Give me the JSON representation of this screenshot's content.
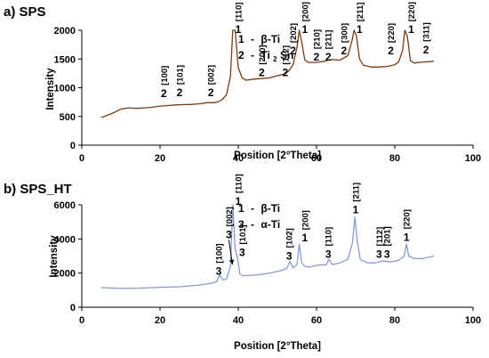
{
  "chart_data": [
    {
      "type": "line",
      "title": "a) SPS",
      "xlabel": "Position [2°Theta]",
      "ylabel": "Intensity",
      "xlim": [
        0,
        100
      ],
      "ylim": [
        0,
        2000
      ],
      "x_ticks": [
        0,
        20,
        40,
        60,
        80,
        100
      ],
      "y_ticks": [
        0,
        500,
        1000,
        1500,
        2000
      ],
      "grid": false,
      "line_color": "#7b3a10",
      "legend": {
        "placement": "top-left-inside",
        "entries": [
          {
            "number": "1",
            "dash": "-",
            "phase": "β-Ti"
          },
          {
            "number": "2",
            "dash": "-",
            "phase": "Ti",
            "subscript": "2",
            "suffix": "Sn"
          }
        ]
      },
      "series": [
        {
          "x": [
            5,
            8,
            10,
            12,
            14,
            16,
            18,
            20,
            22,
            24,
            26,
            28,
            30,
            32,
            34,
            35,
            36,
            37,
            38,
            38.6,
            39.2,
            40,
            41,
            42,
            44,
            46,
            48,
            50,
            52,
            53,
            54,
            55,
            55.6,
            56.2,
            57,
            58,
            60,
            62,
            63,
            64,
            66,
            67,
            68,
            69,
            69.6,
            70.2,
            71,
            72,
            74,
            76,
            78,
            80,
            81,
            82,
            82.6,
            83.2,
            84,
            85,
            86,
            88,
            90
          ],
          "y": [
            480,
            560,
            630,
            650,
            640,
            650,
            660,
            680,
            690,
            700,
            705,
            710,
            720,
            740,
            740,
            760,
            800,
            880,
            1200,
            2000,
            2000,
            1350,
            1170,
            1130,
            1150,
            1160,
            1170,
            1210,
            1240,
            1300,
            1400,
            1700,
            2000,
            1800,
            1480,
            1440,
            1440,
            1460,
            1480,
            1490,
            1480,
            1520,
            1560,
            1800,
            2000,
            1900,
            1500,
            1390,
            1360,
            1360,
            1370,
            1400,
            1450,
            1650,
            2000,
            1900,
            1470,
            1430,
            1440,
            1450,
            1460
          ]
        }
      ],
      "annotations": [
        {
          "index": "2",
          "hkl": "[100]",
          "x": 21,
          "y": 840
        },
        {
          "index": "2",
          "hkl": "[101]",
          "x": 25,
          "y": 850
        },
        {
          "index": "2",
          "hkl": "[002]",
          "x": 33,
          "y": 850
        },
        {
          "index": "1",
          "hkl": "[110]",
          "x": 40,
          "y": 1950
        },
        {
          "index": "2",
          "hkl": "[200]",
          "x": 46,
          "y": 1200
        },
        {
          "index": "2",
          "hkl": "[112]",
          "x": 52,
          "y": 1200
        },
        {
          "index": "2",
          "hkl": "[202]",
          "x": 54,
          "y": 1580
        },
        {
          "index": "1",
          "hkl": "[200]",
          "x": 57,
          "y": 1950
        },
        {
          "index": "2",
          "hkl": "[210]",
          "x": 60,
          "y": 1470
        },
        {
          "index": "2",
          "hkl": "[211]",
          "x": 63,
          "y": 1470
        },
        {
          "index": "2",
          "hkl": "[300]",
          "x": 67,
          "y": 1580
        },
        {
          "index": "1",
          "hkl": "[211]",
          "x": 71,
          "y": 1950
        },
        {
          "index": "2",
          "hkl": "[220]",
          "x": 79,
          "y": 1580
        },
        {
          "index": "1",
          "hkl": "[220]",
          "x": 84.2,
          "y": 1950
        },
        {
          "index": "2",
          "hkl": "[311]",
          "x": 88,
          "y": 1600
        }
      ]
    },
    {
      "type": "line",
      "title": "b) SPS_HT",
      "xlabel": "Position [2°Theta]",
      "ylabel": "Intensity",
      "xlim": [
        0,
        100
      ],
      "ylim": [
        0,
        6000
      ],
      "x_ticks": [
        0,
        20,
        40,
        60,
        80,
        100
      ],
      "y_ticks": [
        0,
        2000,
        4000,
        6000
      ],
      "grid": false,
      "line_color": "#8a9ad6",
      "legend": {
        "placement": "top-left-inside",
        "entries": [
          {
            "number": "1",
            "dash": "-",
            "phase": "β-Ti"
          },
          {
            "number": "3",
            "dash": "-",
            "phase": "α-Ti"
          }
        ]
      },
      "series": [
        {
          "x": [
            5,
            10,
            15,
            20,
            25,
            30,
            33,
            34.5,
            35.2,
            36,
            37,
            38,
            38.6,
            39.2,
            39.8,
            40.4,
            41,
            42,
            45,
            48,
            51,
            52.5,
            53.2,
            54,
            55,
            55.6,
            56.2,
            57,
            58,
            60,
            62.5,
            63.2,
            64,
            66,
            68,
            69.2,
            69.8,
            70.4,
            71.2,
            73,
            75,
            76.5,
            77.5,
            79,
            81,
            82.4,
            83,
            83.6,
            85,
            87,
            90
          ],
          "y": [
            1150,
            1100,
            1120,
            1170,
            1200,
            1300,
            1400,
            1500,
            1900,
            1600,
            1650,
            2400,
            6100,
            3400,
            2900,
            1950,
            1850,
            1850,
            1900,
            2000,
            2150,
            2300,
            2700,
            2300,
            2500,
            3700,
            2600,
            2400,
            2350,
            2450,
            2500,
            2800,
            2500,
            2600,
            2800,
            3800,
            5300,
            3900,
            2800,
            2600,
            2600,
            2700,
            2700,
            2650,
            2750,
            3000,
            3700,
            3000,
            2850,
            2850,
            3000
          ]
        }
      ],
      "annotations": [
        {
          "index": "3",
          "hkl": "[100]",
          "x": 35,
          "y": 1900
        },
        {
          "index": "3",
          "hkl": "[002]",
          "x": 37.6,
          "y": 4050
        },
        {
          "index": "1",
          "hkl": "[110]",
          "x": 40,
          "y": 6000
        },
        {
          "index": "3",
          "hkl": "[101]",
          "x": 41,
          "y": 3000
        },
        {
          "index": "3",
          "hkl": "[102]",
          "x": 53,
          "y": 2800
        },
        {
          "index": "1",
          "hkl": "[200]",
          "x": 57,
          "y": 3850
        },
        {
          "index": "3",
          "hkl": "[110]",
          "x": 63,
          "y": 2900
        },
        {
          "index": "1",
          "hkl": "[211]",
          "x": 70,
          "y": 5500
        },
        {
          "index": "3",
          "hkl": "[112]",
          "x": 76,
          "y": 2900
        },
        {
          "index": "3",
          "hkl": "[201]",
          "x": 78,
          "y": 2900
        },
        {
          "index": "1",
          "hkl": "[220]",
          "x": 83,
          "y": 3900
        }
      ],
      "arrow": {
        "from": [
          37.6,
          3950
        ],
        "to": [
          38.5,
          2500
        ]
      }
    }
  ]
}
